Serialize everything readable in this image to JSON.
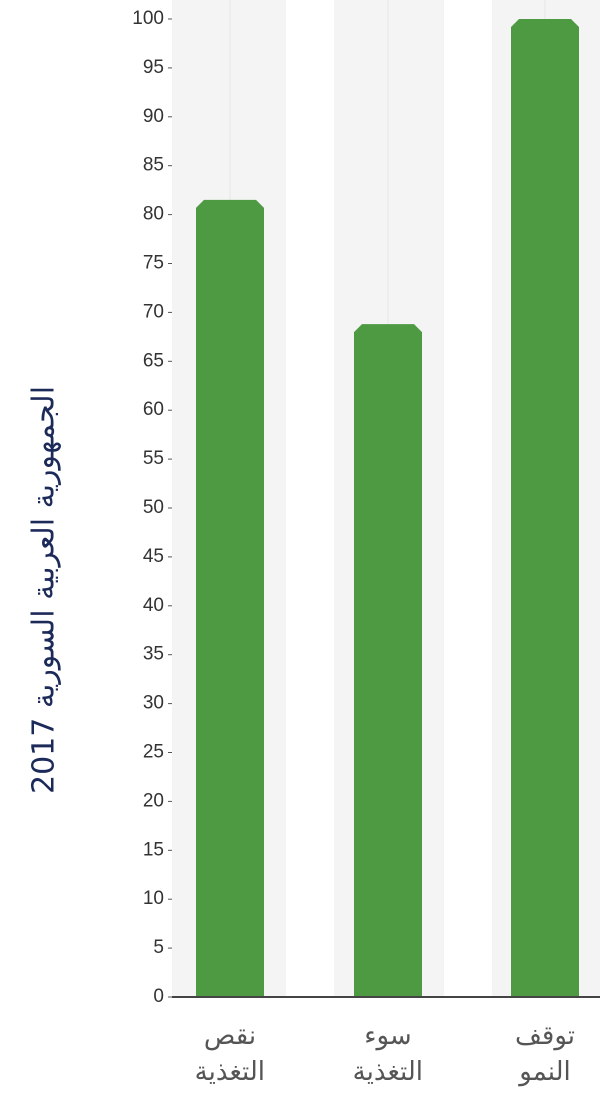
{
  "chart_data": {
    "type": "bar",
    "y_axis_label": "الجمهورية العربية السورية 2017",
    "categories": [
      "نقص التغذية",
      "سوء التغذية",
      "توقف النمو"
    ],
    "values": [
      81.5,
      68.8,
      100
    ],
    "color": "#4e9a43",
    "ylim": [
      0,
      100
    ],
    "yticks": [
      0,
      5,
      10,
      15,
      20,
      25,
      30,
      35,
      40,
      45,
      50,
      55,
      60,
      65,
      70,
      75,
      80,
      85,
      90,
      95,
      100
    ]
  }
}
